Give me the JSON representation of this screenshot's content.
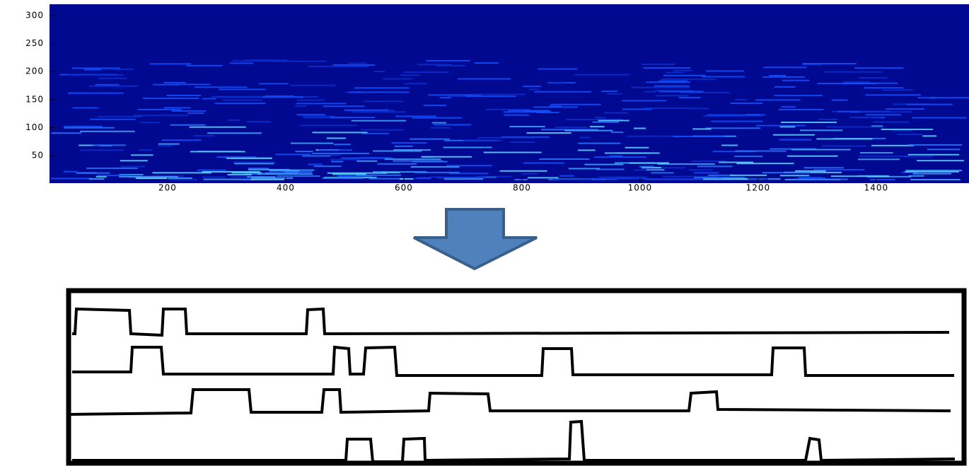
{
  "chart_data": {
    "type": "heatmap",
    "xlim": [
      0,
      1557
    ],
    "ylim": [
      1,
      320
    ],
    "xticks": [
      200,
      400,
      600,
      800,
      1000,
      1200,
      1400
    ],
    "yticks": [
      50,
      100,
      150,
      200,
      250,
      300
    ]
  }
}
